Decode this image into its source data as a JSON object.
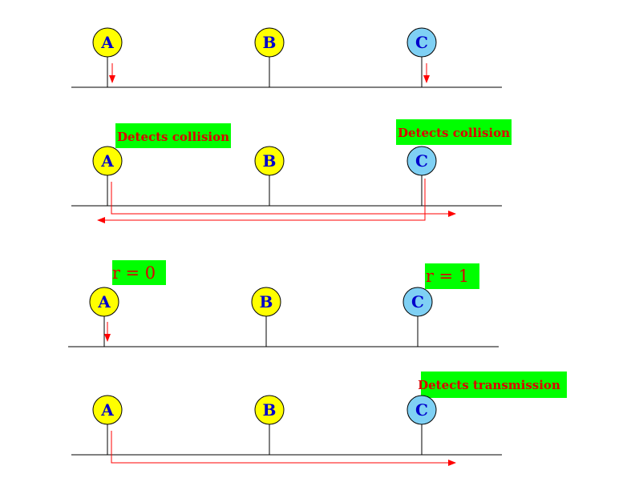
{
  "colors": {
    "node_yellow": "#ffff00",
    "node_blue": "#7fd0f4",
    "label_green": "#00ff00",
    "arrow_red": "#ff0000",
    "text_red": "#dd0000",
    "node_text": "#0000cc",
    "line_black": "#000000"
  },
  "panels": [
    {
      "nodes": [
        {
          "label": "A",
          "color": "yellow"
        },
        {
          "label": "B",
          "color": "yellow"
        },
        {
          "label": "C",
          "color": "blue"
        }
      ],
      "annotations": []
    },
    {
      "nodes": [
        {
          "label": "A",
          "color": "yellow"
        },
        {
          "label": "B",
          "color": "yellow"
        },
        {
          "label": "C",
          "color": "blue"
        }
      ],
      "annotations": [
        {
          "text": "Detects collision"
        },
        {
          "text": "Detects collision"
        }
      ]
    },
    {
      "nodes": [
        {
          "label": "A",
          "color": "yellow"
        },
        {
          "label": "B",
          "color": "yellow"
        },
        {
          "label": "C",
          "color": "blue"
        }
      ],
      "annotations": [
        {
          "text": "r = 0"
        },
        {
          "text": "r = 1"
        }
      ]
    },
    {
      "nodes": [
        {
          "label": "A",
          "color": "yellow"
        },
        {
          "label": "B",
          "color": "yellow"
        },
        {
          "label": "C",
          "color": "blue"
        }
      ],
      "annotations": [
        {
          "text": "Detects transmission"
        }
      ]
    }
  ]
}
